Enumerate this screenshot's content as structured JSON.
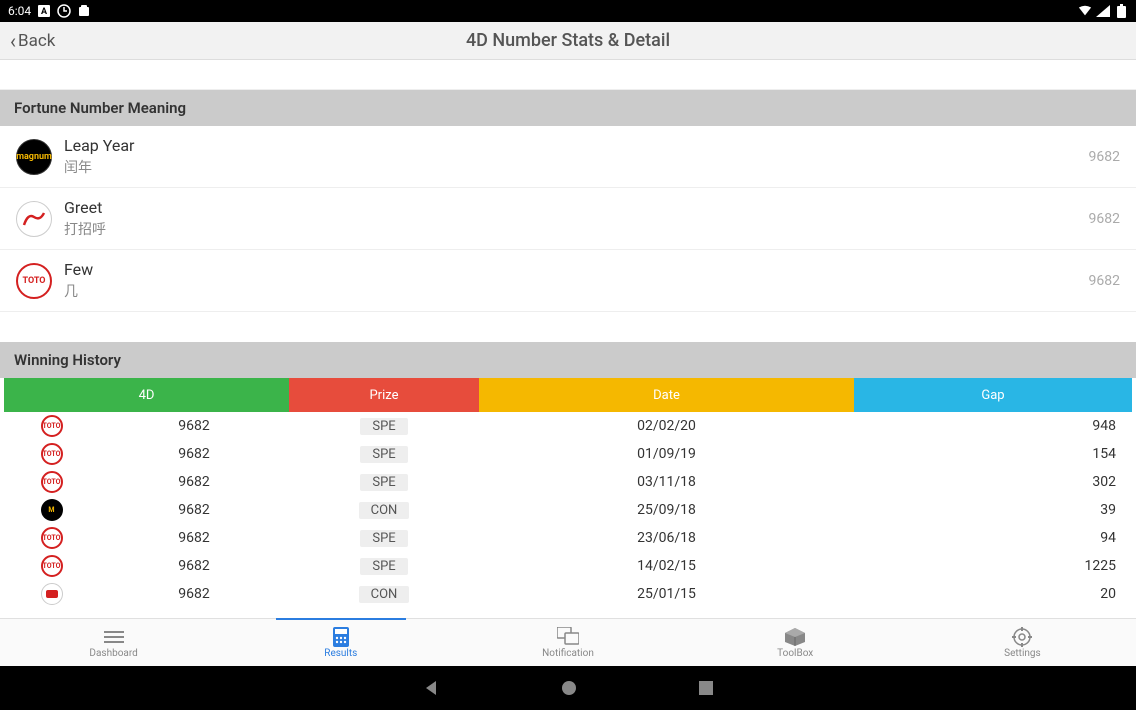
{
  "status": {
    "time": "6:04"
  },
  "header": {
    "back": "Back",
    "title": "4D Number Stats & Detail"
  },
  "sections": {
    "meaning_title": "Fortune Number Meaning",
    "history_title": "Winning History"
  },
  "meanings": [
    {
      "icon": "magnum",
      "title": "Leap Year",
      "sub": "闰年",
      "num": "9682"
    },
    {
      "icon": "damacai",
      "title": "Greet",
      "sub": "打招呼",
      "num": "9682"
    },
    {
      "icon": "toto",
      "title": "Few",
      "sub": "几",
      "num": "9682"
    }
  ],
  "table": {
    "headers": {
      "c1": "4D",
      "c2": "Prize",
      "c3": "Date",
      "c4": "Gap"
    },
    "header_colors": {
      "c1": "#3bb44a",
      "c2": "#e74c3c",
      "c3": "#f5b800",
      "c4": "#29b6e5"
    },
    "rows": [
      {
        "icon": "toto",
        "n": "9682",
        "prize": "SPE",
        "date": "02/02/20",
        "gap": "948"
      },
      {
        "icon": "toto",
        "n": "9682",
        "prize": "SPE",
        "date": "01/09/19",
        "gap": "154"
      },
      {
        "icon": "toto",
        "n": "9682",
        "prize": "SPE",
        "date": "03/11/18",
        "gap": "302"
      },
      {
        "icon": "magnum",
        "n": "9682",
        "prize": "CON",
        "date": "25/09/18",
        "gap": "39"
      },
      {
        "icon": "toto",
        "n": "9682",
        "prize": "SPE",
        "date": "23/06/18",
        "gap": "94"
      },
      {
        "icon": "toto",
        "n": "9682",
        "prize": "SPE",
        "date": "14/02/15",
        "gap": "1225"
      },
      {
        "icon": "damacai",
        "n": "9682",
        "prize": "CON",
        "date": "25/01/15",
        "gap": "20"
      }
    ]
  },
  "nav": {
    "items": [
      {
        "id": "dashboard",
        "label": "Dashboard",
        "active": false
      },
      {
        "id": "results",
        "label": "Results",
        "active": true
      },
      {
        "id": "notification",
        "label": "Notification",
        "active": false
      },
      {
        "id": "toolbox",
        "label": "ToolBox",
        "active": false
      },
      {
        "id": "settings",
        "label": "Settings",
        "active": false
      }
    ]
  }
}
